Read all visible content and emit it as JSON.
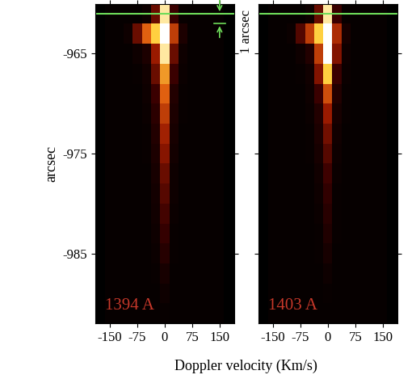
{
  "chart_data": [
    {
      "type": "heatmap",
      "label": "1394 A",
      "y_label": "arcsec",
      "x_label": "Doppler velocity (Km/s)",
      "x": [
        -150,
        -125,
        -100,
        -75,
        -50,
        -25,
        0,
        25,
        50,
        75,
        100,
        125,
        150
      ],
      "y": [
        -961,
        -963,
        -965,
        -967,
        -969,
        -971,
        -973,
        -975,
        -977,
        -979,
        -981,
        -983,
        -985,
        -987,
        -989,
        -991
      ],
      "cells": [
        [
          0.02,
          0.02,
          0.02,
          0.02,
          0.05,
          0.3,
          0.9,
          0.2,
          0.03,
          0.02,
          0.02,
          0.02,
          0.02
        ],
        [
          0.02,
          0.02,
          0.05,
          0.3,
          0.6,
          0.8,
          1.0,
          0.5,
          0.1,
          0.02,
          0.02,
          0.02,
          0.02
        ],
        [
          0.02,
          0.02,
          0.02,
          0.05,
          0.1,
          0.4,
          0.9,
          0.3,
          0.05,
          0.02,
          0.02,
          0.02,
          0.02
        ],
        [
          0.02,
          0.02,
          0.02,
          0.03,
          0.06,
          0.3,
          0.7,
          0.2,
          0.04,
          0.02,
          0.02,
          0.02,
          0.02
        ],
        [
          0.02,
          0.02,
          0.02,
          0.02,
          0.05,
          0.2,
          0.6,
          0.12,
          0.03,
          0.02,
          0.02,
          0.02,
          0.02
        ],
        [
          0.02,
          0.02,
          0.02,
          0.02,
          0.04,
          0.15,
          0.5,
          0.1,
          0.03,
          0.02,
          0.02,
          0.02,
          0.02
        ],
        [
          0.02,
          0.02,
          0.02,
          0.02,
          0.03,
          0.12,
          0.42,
          0.08,
          0.02,
          0.02,
          0.02,
          0.02,
          0.02
        ],
        [
          0.02,
          0.02,
          0.02,
          0.02,
          0.03,
          0.1,
          0.36,
          0.07,
          0.02,
          0.02,
          0.02,
          0.02,
          0.02
        ],
        [
          0.02,
          0.02,
          0.02,
          0.02,
          0.02,
          0.08,
          0.3,
          0.05,
          0.02,
          0.02,
          0.02,
          0.02,
          0.02
        ],
        [
          0.02,
          0.02,
          0.02,
          0.02,
          0.02,
          0.07,
          0.26,
          0.05,
          0.02,
          0.02,
          0.02,
          0.02,
          0.02
        ],
        [
          0.02,
          0.02,
          0.02,
          0.02,
          0.02,
          0.06,
          0.22,
          0.04,
          0.02,
          0.02,
          0.02,
          0.02,
          0.02
        ],
        [
          0.02,
          0.02,
          0.02,
          0.02,
          0.02,
          0.05,
          0.18,
          0.03,
          0.02,
          0.02,
          0.02,
          0.02,
          0.02
        ],
        [
          0.02,
          0.02,
          0.02,
          0.02,
          0.02,
          0.04,
          0.13,
          0.03,
          0.02,
          0.02,
          0.02,
          0.02,
          0.02
        ],
        [
          0.02,
          0.02,
          0.02,
          0.02,
          0.02,
          0.03,
          0.08,
          0.02,
          0.02,
          0.02,
          0.02,
          0.02,
          0.02
        ],
        [
          0.02,
          0.02,
          0.02,
          0.02,
          0.02,
          0.02,
          0.05,
          0.02,
          0.02,
          0.02,
          0.02,
          0.02,
          0.02
        ],
        [
          0.02,
          0.02,
          0.02,
          0.02,
          0.02,
          0.02,
          0.03,
          0.02,
          0.02,
          0.02,
          0.02,
          0.02,
          0.02
        ]
      ],
      "color_range": [
        0,
        1
      ],
      "xlim": [
        -190,
        190
      ],
      "ylim": [
        -992,
        -960
      ],
      "xticks": [
        -150,
        -75,
        0,
        75,
        150
      ],
      "yticks": [
        -965,
        -975,
        -985
      ],
      "reference_line": -961,
      "bracket": [
        -961,
        -962
      ]
    },
    {
      "type": "heatmap",
      "label": "1403 A",
      "annotation": "1 arcsec",
      "x": [
        -150,
        -125,
        -100,
        -75,
        -50,
        -25,
        0,
        25,
        50,
        75,
        100,
        125,
        150
      ],
      "y": [
        -961,
        -963,
        -965,
        -967,
        -969,
        -971,
        -973,
        -975,
        -977,
        -979,
        -981,
        -983,
        -985,
        -987,
        -989,
        -991
      ],
      "cells": [
        [
          0.02,
          0.02,
          0.02,
          0.02,
          0.05,
          0.3,
          0.9,
          0.2,
          0.03,
          0.02,
          0.02,
          0.02,
          0.02
        ],
        [
          0.02,
          0.02,
          0.04,
          0.25,
          0.5,
          0.8,
          1.0,
          0.45,
          0.08,
          0.02,
          0.02,
          0.02,
          0.02
        ],
        [
          0.02,
          0.02,
          0.02,
          0.05,
          0.12,
          0.5,
          1.0,
          0.35,
          0.05,
          0.02,
          0.02,
          0.02,
          0.02
        ],
        [
          0.02,
          0.02,
          0.02,
          0.03,
          0.06,
          0.35,
          0.8,
          0.2,
          0.04,
          0.02,
          0.02,
          0.02,
          0.02
        ],
        [
          0.02,
          0.02,
          0.02,
          0.02,
          0.05,
          0.2,
          0.55,
          0.12,
          0.03,
          0.02,
          0.02,
          0.02,
          0.02
        ],
        [
          0.02,
          0.02,
          0.02,
          0.02,
          0.04,
          0.12,
          0.4,
          0.08,
          0.03,
          0.02,
          0.02,
          0.02,
          0.02
        ],
        [
          0.02,
          0.02,
          0.02,
          0.02,
          0.03,
          0.1,
          0.32,
          0.06,
          0.02,
          0.02,
          0.02,
          0.02,
          0.02
        ],
        [
          0.02,
          0.02,
          0.02,
          0.02,
          0.03,
          0.08,
          0.26,
          0.05,
          0.02,
          0.02,
          0.02,
          0.02,
          0.02
        ],
        [
          0.02,
          0.02,
          0.02,
          0.02,
          0.02,
          0.06,
          0.21,
          0.04,
          0.02,
          0.02,
          0.02,
          0.02,
          0.02
        ],
        [
          0.02,
          0.02,
          0.02,
          0.02,
          0.02,
          0.05,
          0.17,
          0.03,
          0.02,
          0.02,
          0.02,
          0.02,
          0.02
        ],
        [
          0.02,
          0.02,
          0.02,
          0.02,
          0.02,
          0.04,
          0.14,
          0.03,
          0.02,
          0.02,
          0.02,
          0.02,
          0.02
        ],
        [
          0.02,
          0.02,
          0.02,
          0.02,
          0.02,
          0.03,
          0.11,
          0.03,
          0.02,
          0.02,
          0.02,
          0.02,
          0.02
        ],
        [
          0.02,
          0.02,
          0.02,
          0.02,
          0.02,
          0.03,
          0.08,
          0.02,
          0.02,
          0.02,
          0.02,
          0.02,
          0.02
        ],
        [
          0.02,
          0.02,
          0.02,
          0.02,
          0.02,
          0.02,
          0.05,
          0.02,
          0.02,
          0.02,
          0.02,
          0.02,
          0.02
        ],
        [
          0.02,
          0.02,
          0.02,
          0.02,
          0.02,
          0.02,
          0.03,
          0.02,
          0.02,
          0.02,
          0.02,
          0.02,
          0.02
        ],
        [
          0.02,
          0.02,
          0.02,
          0.02,
          0.02,
          0.02,
          0.02,
          0.02,
          0.02,
          0.02,
          0.02,
          0.02,
          0.02
        ]
      ],
      "color_range": [
        0,
        1
      ],
      "xlim": [
        -190,
        190
      ],
      "ylim": [
        -992,
        -960
      ],
      "xticks": [
        -150,
        -75,
        0,
        75,
        150
      ],
      "yticks": [
        -965,
        -975,
        -985
      ],
      "tick_labels": "x",
      "reference_line": -961
    }
  ]
}
